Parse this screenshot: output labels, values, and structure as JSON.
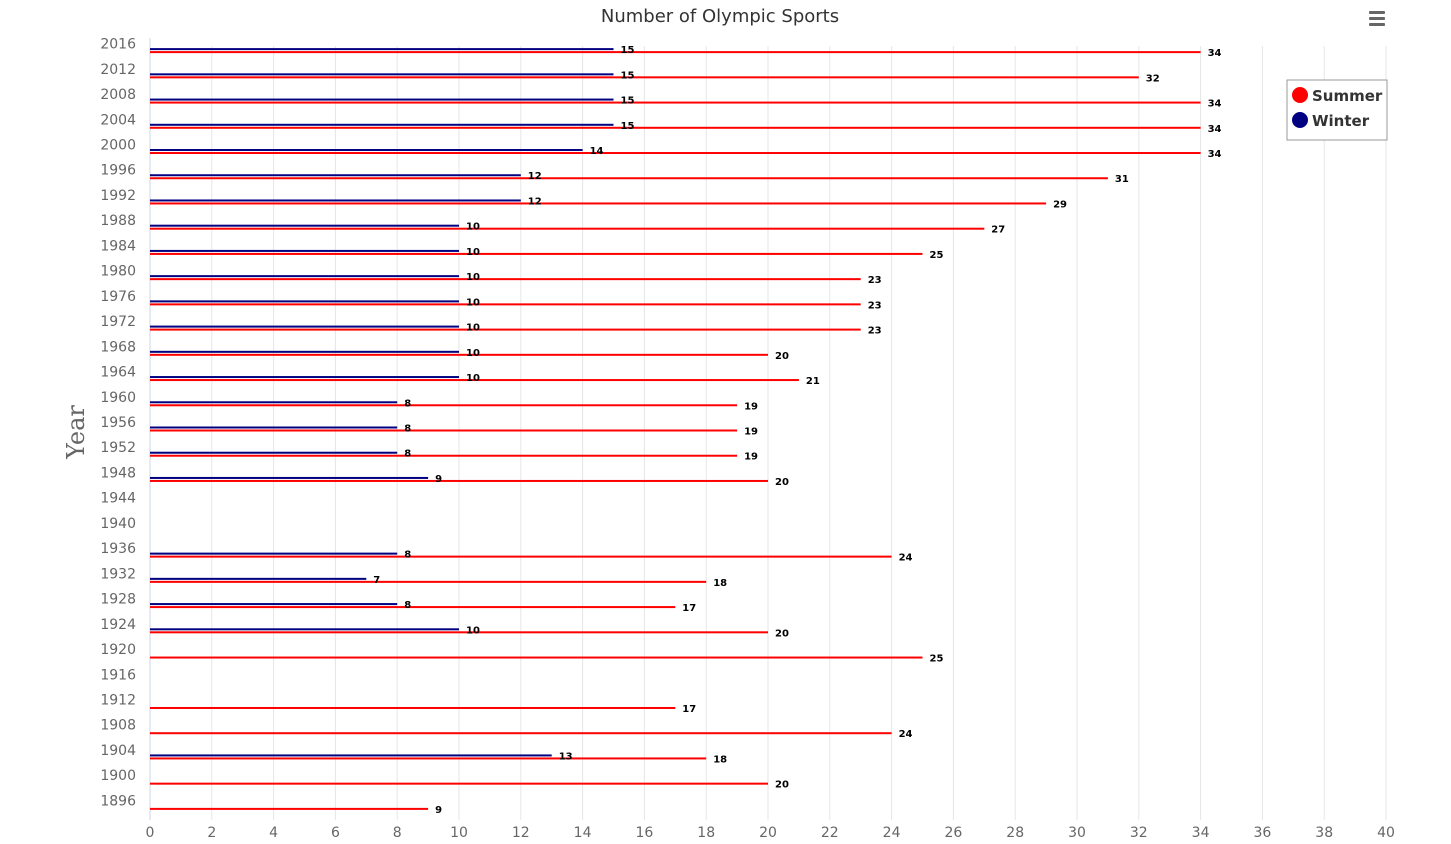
{
  "chart_data": {
    "type": "bar",
    "orientation": "horizontal",
    "title": "Number of Olympic Sports",
    "ylabel": "Year",
    "xlabel": "",
    "xlim": [
      0,
      40
    ],
    "xticks": [
      0,
      2,
      4,
      6,
      8,
      10,
      12,
      14,
      16,
      18,
      20,
      22,
      24,
      26,
      28,
      30,
      32,
      34,
      36,
      38,
      40
    ],
    "grid": true,
    "legend_position": "top-right",
    "categories": [
      "2016",
      "2012",
      "2008",
      "2004",
      "2000",
      "1996",
      "1992",
      "1988",
      "1984",
      "1980",
      "1976",
      "1972",
      "1968",
      "1964",
      "1960",
      "1956",
      "1952",
      "1948",
      "1944",
      "1940",
      "1936",
      "1932",
      "1928",
      "1924",
      "1920",
      "1916",
      "1912",
      "1908",
      "1904",
      "1900",
      "1896"
    ],
    "series": [
      {
        "name": "Summer",
        "color": "#ff0000",
        "values": [
          34,
          32,
          34,
          34,
          34,
          31,
          29,
          27,
          25,
          23,
          23,
          23,
          20,
          21,
          19,
          19,
          19,
          20,
          null,
          null,
          24,
          18,
          17,
          20,
          25,
          null,
          17,
          24,
          18,
          20,
          9
        ]
      },
      {
        "name": "Winter",
        "color": "#000080",
        "values": [
          15,
          15,
          15,
          15,
          14,
          12,
          12,
          10,
          10,
          10,
          10,
          10,
          10,
          10,
          8,
          8,
          8,
          9,
          null,
          null,
          8,
          7,
          8,
          10,
          null,
          null,
          null,
          null,
          13,
          null,
          null
        ]
      }
    ]
  },
  "toolbar": {
    "menu_icon": "hamburger-menu-icon"
  }
}
